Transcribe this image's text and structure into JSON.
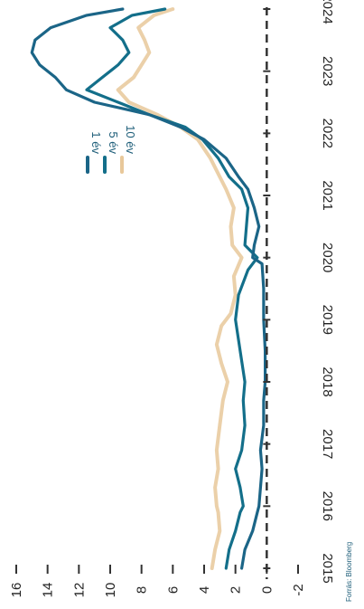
{
  "chart_data": {
    "type": "line",
    "orientation": "rotated-90-clockwise",
    "x_domain": [
      2015.0,
      2024.0
    ],
    "ylim": [
      -2,
      16
    ],
    "y_ticks": [
      "16",
      "14",
      "12",
      "10",
      "8",
      "6",
      "4",
      "2",
      "0",
      "-2"
    ],
    "x_ticks": [
      "2015",
      "2016",
      "2017",
      "2018",
      "2019",
      "2020",
      "2021",
      "2022",
      "2023",
      "2024"
    ],
    "legend": {
      "placement": "right-upper"
    },
    "source_text": "Forrás: Bloomberg",
    "grid": false,
    "series": [
      {
        "name": "1 év",
        "color": "#1b6587",
        "points": [
          [
            2015.0,
            1.6
          ],
          [
            2015.3,
            1.4
          ],
          [
            2015.6,
            0.9
          ],
          [
            2015.9,
            0.6
          ],
          [
            2016.0,
            0.5
          ],
          [
            2016.3,
            0.4
          ],
          [
            2016.6,
            0.3
          ],
          [
            2016.9,
            0.4
          ],
          [
            2017.3,
            0.2
          ],
          [
            2017.7,
            0.2
          ],
          [
            2018.0,
            0.1
          ],
          [
            2018.5,
            0.1
          ],
          [
            2019.0,
            0.2
          ],
          [
            2019.5,
            0.2
          ],
          [
            2019.9,
            0.3
          ],
          [
            2020.0,
            0.9
          ],
          [
            2020.2,
            0.8
          ],
          [
            2020.5,
            0.5
          ],
          [
            2020.8,
            0.8
          ],
          [
            2021.1,
            1.2
          ],
          [
            2021.3,
            1.8
          ],
          [
            2021.6,
            2.6
          ],
          [
            2021.9,
            4.0
          ],
          [
            2022.1,
            5.5
          ],
          [
            2022.3,
            7.5
          ],
          [
            2022.5,
            11.0
          ],
          [
            2022.7,
            12.8
          ],
          [
            2022.9,
            13.5
          ],
          [
            2023.1,
            14.5
          ],
          [
            2023.3,
            15.0
          ],
          [
            2023.5,
            14.8
          ],
          [
            2023.7,
            13.8
          ],
          [
            2023.9,
            11.5
          ],
          [
            2024.0,
            9.2
          ]
        ]
      },
      {
        "name": "5 év",
        "color": "#136f8a",
        "points": [
          [
            2015.0,
            2.6
          ],
          [
            2015.3,
            2.4
          ],
          [
            2015.6,
            2.0
          ],
          [
            2015.9,
            1.7
          ],
          [
            2016.0,
            1.5
          ],
          [
            2016.3,
            1.7
          ],
          [
            2016.6,
            2.0
          ],
          [
            2016.9,
            1.6
          ],
          [
            2017.3,
            1.4
          ],
          [
            2017.7,
            1.5
          ],
          [
            2018.0,
            1.4
          ],
          [
            2018.5,
            1.7
          ],
          [
            2019.0,
            2.0
          ],
          [
            2019.4,
            1.8
          ],
          [
            2019.8,
            1.2
          ],
          [
            2020.0,
            0.6
          ],
          [
            2020.2,
            1.4
          ],
          [
            2020.5,
            1.3
          ],
          [
            2020.8,
            1.2
          ],
          [
            2021.1,
            1.6
          ],
          [
            2021.3,
            2.4
          ],
          [
            2021.6,
            3.1
          ],
          [
            2021.9,
            4.1
          ],
          [
            2022.1,
            5.2
          ],
          [
            2022.3,
            7.5
          ],
          [
            2022.5,
            9.5
          ],
          [
            2022.7,
            11.5
          ],
          [
            2022.9,
            10.5
          ],
          [
            2023.1,
            9.5
          ],
          [
            2023.3,
            8.8
          ],
          [
            2023.5,
            9.2
          ],
          [
            2023.7,
            10.0
          ],
          [
            2023.9,
            8.6
          ],
          [
            2024.0,
            6.5
          ]
        ]
      },
      {
        "name": "10 év",
        "color": "#e8c89a",
        "points": [
          [
            2015.0,
            3.5
          ],
          [
            2015.3,
            3.3
          ],
          [
            2015.6,
            3.0
          ],
          [
            2015.9,
            3.1
          ],
          [
            2016.0,
            3.2
          ],
          [
            2016.3,
            3.3
          ],
          [
            2016.6,
            3.1
          ],
          [
            2016.9,
            3.2
          ],
          [
            2017.3,
            3.0
          ],
          [
            2017.7,
            2.8
          ],
          [
            2018.0,
            2.5
          ],
          [
            2018.3,
            2.9
          ],
          [
            2018.6,
            3.2
          ],
          [
            2018.9,
            2.9
          ],
          [
            2019.1,
            2.3
          ],
          [
            2019.4,
            2.0
          ],
          [
            2019.7,
            2.1
          ],
          [
            2020.0,
            1.6
          ],
          [
            2020.2,
            2.2
          ],
          [
            2020.5,
            2.3
          ],
          [
            2020.8,
            2.1
          ],
          [
            2021.1,
            2.6
          ],
          [
            2021.3,
            3.0
          ],
          [
            2021.6,
            3.6
          ],
          [
            2021.9,
            4.4
          ],
          [
            2022.1,
            5.5
          ],
          [
            2022.3,
            7.0
          ],
          [
            2022.5,
            8.8
          ],
          [
            2022.7,
            9.5
          ],
          [
            2022.9,
            8.5
          ],
          [
            2023.1,
            8.0
          ],
          [
            2023.3,
            7.5
          ],
          [
            2023.5,
            7.8
          ],
          [
            2023.7,
            8.2
          ],
          [
            2023.9,
            7.2
          ],
          [
            2024.0,
            6.0
          ]
        ]
      }
    ]
  }
}
